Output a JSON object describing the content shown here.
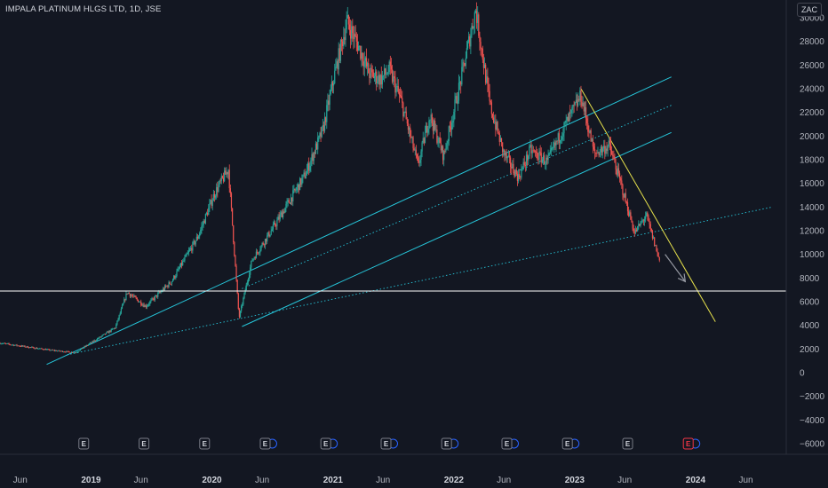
{
  "header": {
    "symbol_title": "IMPALA PLATINUM HLGS LTD, 1D, JSE",
    "currency_label": "ZAC"
  },
  "colors": {
    "background": "#131722",
    "up_candle": "#26a69a",
    "down_candle": "#ef5350",
    "trend_channel": "#26c6da",
    "trend_down": "#e6e14c",
    "support_line": "#ffffff",
    "arrow": "#9598a1"
  },
  "chart_data": {
    "type": "candlestick",
    "title": "IMPALA PLATINUM HLGS LTD, 1D, JSE",
    "ylim": [
      -6900,
      31500
    ],
    "y_ticks": [
      30000,
      28000,
      26000,
      24000,
      22000,
      20000,
      18000,
      16000,
      14000,
      12000,
      10000,
      8000,
      6000,
      4000,
      2000,
      0,
      -2000,
      -4000,
      -6000
    ],
    "y_tick_labels": [
      "30000",
      "28000",
      "26000",
      "24000",
      "22000",
      "20000",
      "18000",
      "16000",
      "14000",
      "12000",
      "10000",
      "8000",
      "6000",
      "4000",
      "2000",
      "0",
      "−2000",
      "−4000",
      "−6000"
    ],
    "x_range": [
      "2018-04-01",
      "2024-10-01"
    ],
    "x_ticks": [
      {
        "date": "2018-06-01",
        "label": "Jun",
        "year": false
      },
      {
        "date": "2019-01-01",
        "label": "2019",
        "year": true
      },
      {
        "date": "2019-06-01",
        "label": "Jun",
        "year": false
      },
      {
        "date": "2020-01-01",
        "label": "2020",
        "year": true
      },
      {
        "date": "2020-06-01",
        "label": "Jun",
        "year": false
      },
      {
        "date": "2021-01-01",
        "label": "2021",
        "year": true
      },
      {
        "date": "2021-06-01",
        "label": "Jun",
        "year": false
      },
      {
        "date": "2022-01-01",
        "label": "2022",
        "year": true
      },
      {
        "date": "2022-06-01",
        "label": "Jun",
        "year": false
      },
      {
        "date": "2023-01-01",
        "label": "2023",
        "year": true
      },
      {
        "date": "2023-06-01",
        "label": "Jun",
        "year": false
      },
      {
        "date": "2024-01-01",
        "label": "2024",
        "year": true
      },
      {
        "date": "2024-06-01",
        "label": "Jun",
        "year": false
      }
    ],
    "price_path": [
      [
        "2018-04-01",
        2500
      ],
      [
        "2018-09-01",
        1900
      ],
      [
        "2018-11-15",
        1700
      ],
      [
        "2019-03-15",
        3800
      ],
      [
        "2019-04-20",
        6800
      ],
      [
        "2019-06-15",
        5600
      ],
      [
        "2019-09-01",
        7700
      ],
      [
        "2019-11-20",
        11500
      ],
      [
        "2020-01-10",
        15200
      ],
      [
        "2020-02-20",
        17200
      ],
      [
        "2020-03-23",
        4600
      ],
      [
        "2020-05-01",
        9500
      ],
      [
        "2020-07-10",
        12500
      ],
      [
        "2020-10-10",
        16800
      ],
      [
        "2020-12-01",
        20500
      ],
      [
        "2021-01-08",
        25500
      ],
      [
        "2021-02-12",
        29700
      ],
      [
        "2021-03-20",
        27500
      ],
      [
        "2021-04-20",
        25300
      ],
      [
        "2021-05-25",
        24800
      ],
      [
        "2021-06-20",
        25600
      ],
      [
        "2021-07-25",
        23000
      ],
      [
        "2021-09-15",
        17500
      ],
      [
        "2021-10-20",
        21800
      ],
      [
        "2021-12-01",
        18300
      ],
      [
        "2022-01-20",
        24500
      ],
      [
        "2022-03-08",
        30700
      ],
      [
        "2022-04-20",
        22600
      ],
      [
        "2022-06-01",
        18500
      ],
      [
        "2022-07-15",
        16500
      ],
      [
        "2022-08-20",
        18800
      ],
      [
        "2022-10-10",
        17800
      ],
      [
        "2022-11-20",
        20200
      ],
      [
        "2023-01-20",
        23400
      ],
      [
        "2023-03-01",
        18500
      ],
      [
        "2023-04-15",
        19200
      ],
      [
        "2023-05-20",
        16000
      ],
      [
        "2023-07-01",
        11800
      ],
      [
        "2023-08-05",
        13300
      ],
      [
        "2023-09-15",
        9400
      ]
    ],
    "trendlines": [
      {
        "style": "solid",
        "color": "#26c6da",
        "from": [
          "2018-08-20",
          700
        ],
        "to": [
          "2023-10-20",
          25000
        ]
      },
      {
        "style": "solid",
        "color": "#26c6da",
        "from": [
          "2020-04-01",
          3900
        ],
        "to": [
          "2023-10-20",
          20300
        ]
      },
      {
        "style": "dotted",
        "color": "#26c6da",
        "from": [
          "2020-04-01",
          7100
        ],
        "to": [
          "2023-10-20",
          22600
        ]
      },
      {
        "style": "dotted",
        "color": "#26c6da",
        "from": [
          "2018-10-20",
          1500
        ],
        "to": [
          "2024-08-20",
          14000
        ]
      },
      {
        "style": "solid",
        "color": "#e6e14c",
        "from": [
          "2023-01-20",
          24000
        ],
        "to": [
          "2024-03-01",
          4300
        ]
      }
    ],
    "horizontal_line": {
      "value": 6900,
      "color": "#ffffff"
    },
    "arrow": {
      "from": [
        "2023-10-01",
        10000
      ],
      "to": [
        "2023-12-01",
        7700
      ]
    },
    "events": [
      {
        "date": "2018-12-10",
        "label": "E",
        "dividend": false,
        "highlight": false
      },
      {
        "date": "2019-06-10",
        "label": "E",
        "dividend": false,
        "highlight": false
      },
      {
        "date": "2019-12-10",
        "label": "E",
        "dividend": false,
        "highlight": false
      },
      {
        "date": "2020-06-10",
        "label": "E",
        "dividend": true,
        "highlight": false
      },
      {
        "date": "2020-12-10",
        "label": "E",
        "dividend": true,
        "highlight": false
      },
      {
        "date": "2021-06-10",
        "label": "E",
        "dividend": true,
        "highlight": false
      },
      {
        "date": "2021-12-10",
        "label": "E",
        "dividend": true,
        "highlight": false
      },
      {
        "date": "2022-06-10",
        "label": "E",
        "dividend": true,
        "highlight": false
      },
      {
        "date": "2022-12-10",
        "label": "E",
        "dividend": true,
        "highlight": false
      },
      {
        "date": "2023-06-10",
        "label": "E",
        "dividend": false,
        "highlight": false
      },
      {
        "date": "2023-12-10",
        "label": "E",
        "dividend": true,
        "highlight": true
      }
    ]
  }
}
